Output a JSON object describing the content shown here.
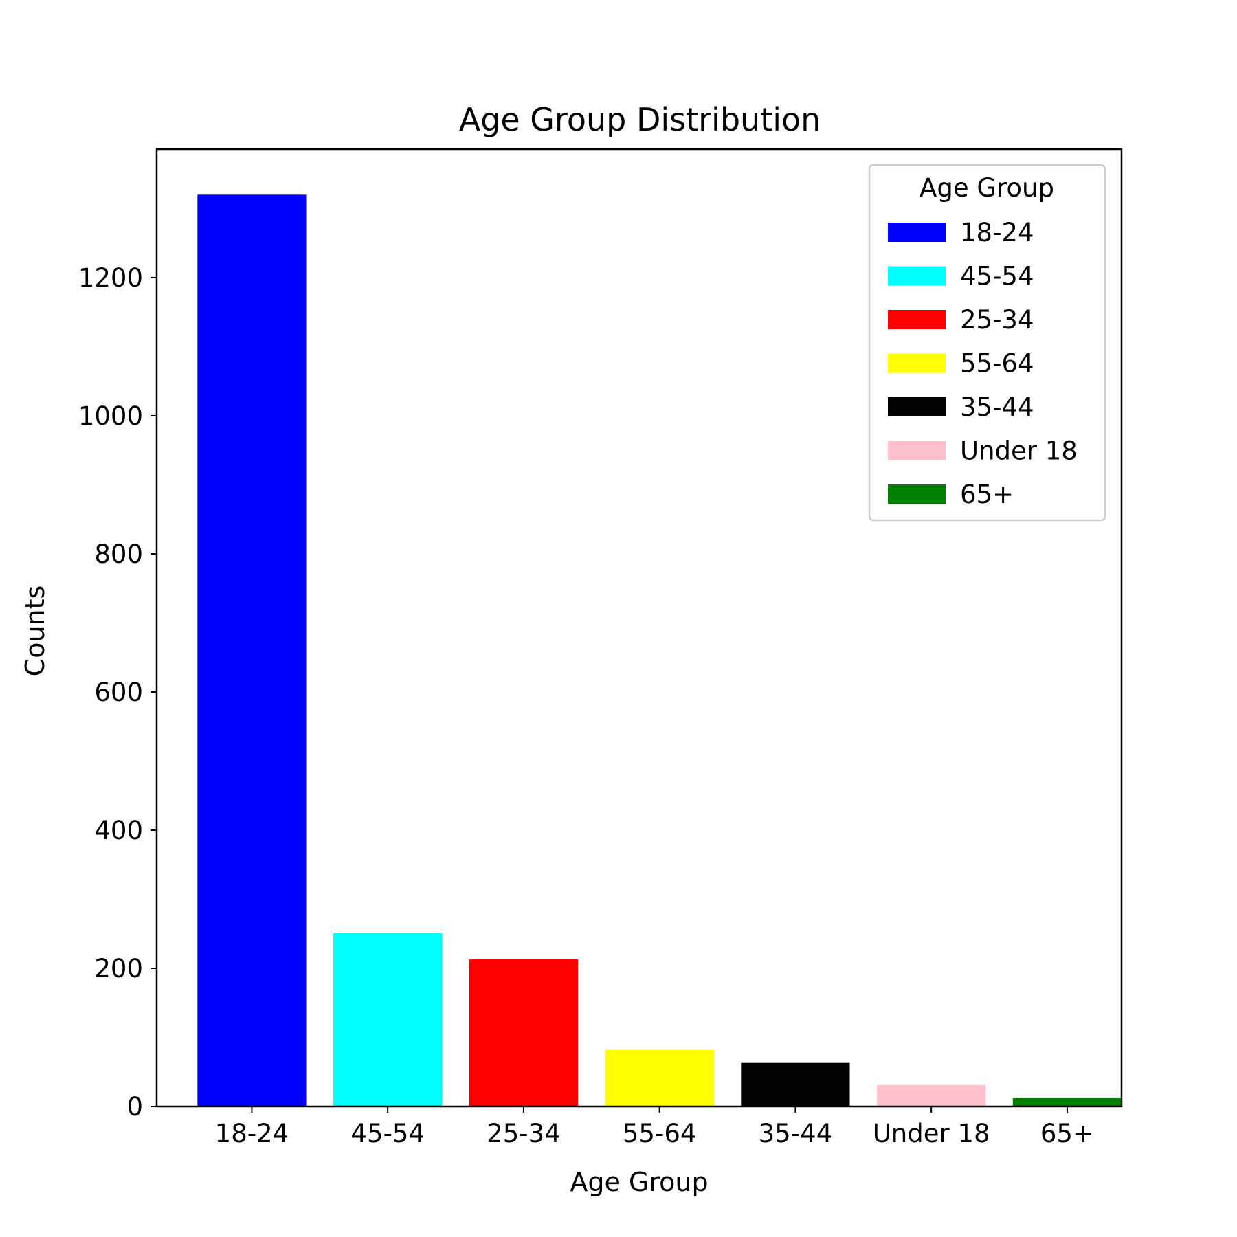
{
  "chart_data": {
    "type": "bar",
    "title": "Age Group Distribution",
    "xlabel": "Age Group",
    "ylabel": "Counts",
    "categories": [
      "18-24",
      "45-54",
      "25-34",
      "55-64",
      "35-44",
      "Under 18",
      "65+"
    ],
    "values": [
      1320,
      251,
      213,
      82,
      63,
      31,
      12
    ],
    "colors": [
      "#0000ff",
      "#00ffff",
      "#ff0000",
      "#ffff00",
      "#000000",
      "#ffc0cb",
      "#008000"
    ],
    "ylim": [
      0,
      1386
    ],
    "yticks": [
      0,
      200,
      400,
      600,
      800,
      1000,
      1200
    ],
    "grid": false,
    "legend": {
      "title": "Age Group",
      "placement": "top-right",
      "entries": [
        "18-24",
        "45-54",
        "25-34",
        "55-64",
        "35-44",
        "Under 18",
        "65+"
      ]
    }
  }
}
